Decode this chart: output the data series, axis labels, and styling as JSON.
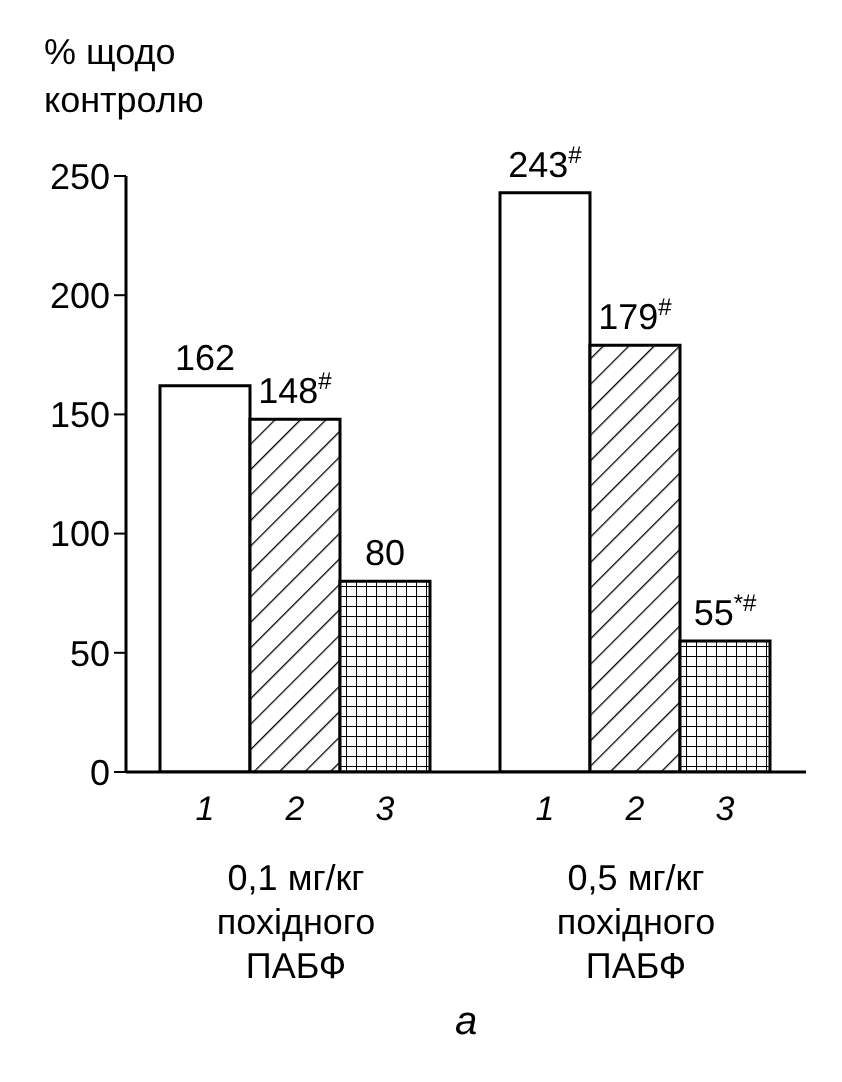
{
  "chart_data": {
    "type": "bar",
    "ylabel": "% щодо контролю",
    "categories": [
      "0,1 мг/кг похідного ПАБФ",
      "0,5 мг/кг похідного ПАБФ"
    ],
    "series": [
      {
        "name": "1",
        "color": "#ffffff",
        "values": [
          162,
          243
        ],
        "value_labels": [
          "162",
          "243$^{#}$"
        ]
      },
      {
        "name": "2",
        "color": "#000000",
        "values": [
          148,
          179
        ],
        "value_labels": [
          "148$^{#}$",
          "179$^{#}$"
        ]
      },
      {
        "name": "3",
        "color": "#000000",
        "values": [
          80,
          55
        ],
        "value_labels": [
          "80",
          "55$^{*#}$"
        ]
      }
    ],
    "ylim": [
      0,
      250
    ],
    "yticks": [
      0,
      50,
      100,
      150,
      200,
      250
    ],
    "grid": false,
    "legend": false,
    "annotations": [
      "а"
    ]
  }
}
